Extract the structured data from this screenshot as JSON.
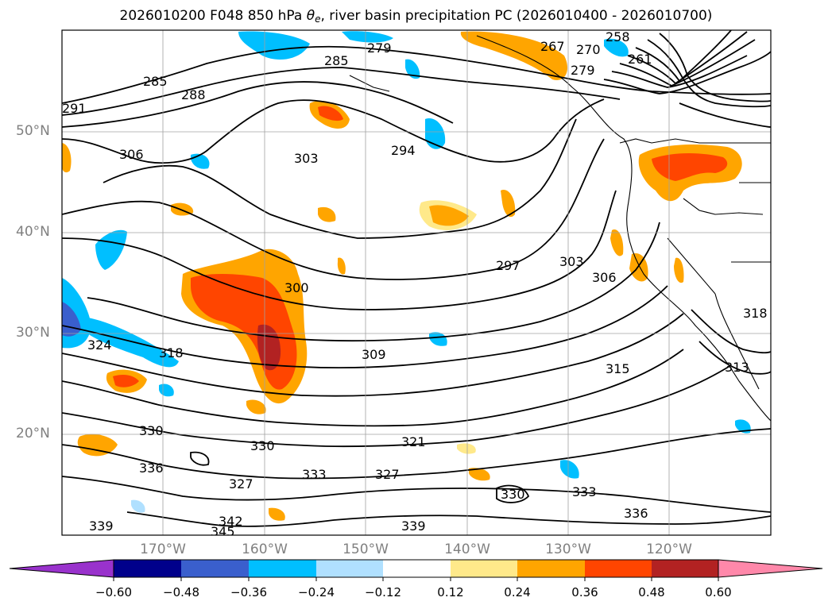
{
  "title": {
    "prefix": "2026010200 F048 850 hPa ",
    "theta": "θ",
    "sub": "e",
    "suffix": ", river basin precipitation PC (2026010400 - 2026010700)"
  },
  "axes": {
    "lat_labels": [
      "50°N",
      "40°N",
      "30°N",
      "20°N"
    ],
    "lon_labels": [
      "170°W",
      "160°W",
      "150°W",
      "140°W",
      "130°W",
      "120°W"
    ]
  },
  "contour_labels": [
    "285",
    "288",
    "291",
    "279",
    "285",
    "306",
    "303",
    "294",
    "297",
    "303",
    "306",
    "300",
    "309",
    "315",
    "318",
    "324",
    "321",
    "327",
    "327",
    "330",
    "330",
    "330",
    "336",
    "333",
    "333",
    "336",
    "339",
    "339",
    "342",
    "345",
    "279",
    "267",
    "270",
    "258",
    "261",
    "313",
    "318"
  ],
  "colorbar": {
    "ticks": [
      "−0.60",
      "−0.48",
      "−0.36",
      "−0.24",
      "−0.12",
      "0.12",
      "0.24",
      "0.36",
      "0.48",
      "0.60"
    ],
    "colors": [
      "#9932cc",
      "#00008b",
      "#3a5fcd",
      "#00bfff",
      "#b0e0ff",
      "#ffffff",
      "#ffe98a",
      "#ffa500",
      "#ff4500",
      "#b22222",
      "#ff88aa"
    ]
  }
}
